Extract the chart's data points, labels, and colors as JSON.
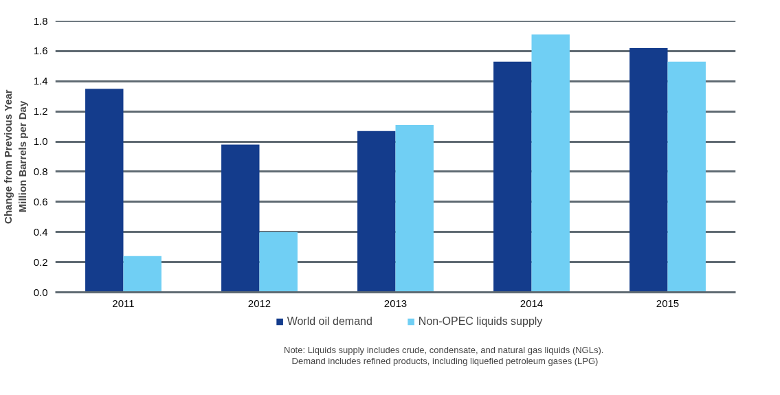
{
  "chart_data": {
    "type": "bar",
    "ylabel": "Change from Previous Year\nMillion Barrels per Day",
    "categories": [
      "2011",
      "2012",
      "2013",
      "2014",
      "2015"
    ],
    "series": [
      {
        "name": "World oil demand",
        "color": "#143c8c",
        "values": [
          1.35,
          0.98,
          1.07,
          1.53,
          1.62
        ]
      },
      {
        "name": "Non-OPEC liquids supply",
        "color": "#70cff4",
        "values": [
          0.24,
          0.4,
          1.11,
          1.71,
          1.53
        ]
      }
    ],
    "ylim": [
      0,
      1.8
    ],
    "yticks": [
      {
        "value": 0,
        "label": "0.0"
      },
      0.2,
      0.4,
      0.6,
      0.8,
      {
        "value": 1,
        "label": "1.0"
      },
      1.2,
      1.4,
      1.6,
      1.8
    ],
    "grid": "y",
    "legend": "bottom",
    "annotations": [
      "Note: Liquids supply includes crude, condensate,  and natural gas liquids (NGLs).\nDemand includes refined products, including liquefied petroleum gases (LPG)"
    ]
  }
}
